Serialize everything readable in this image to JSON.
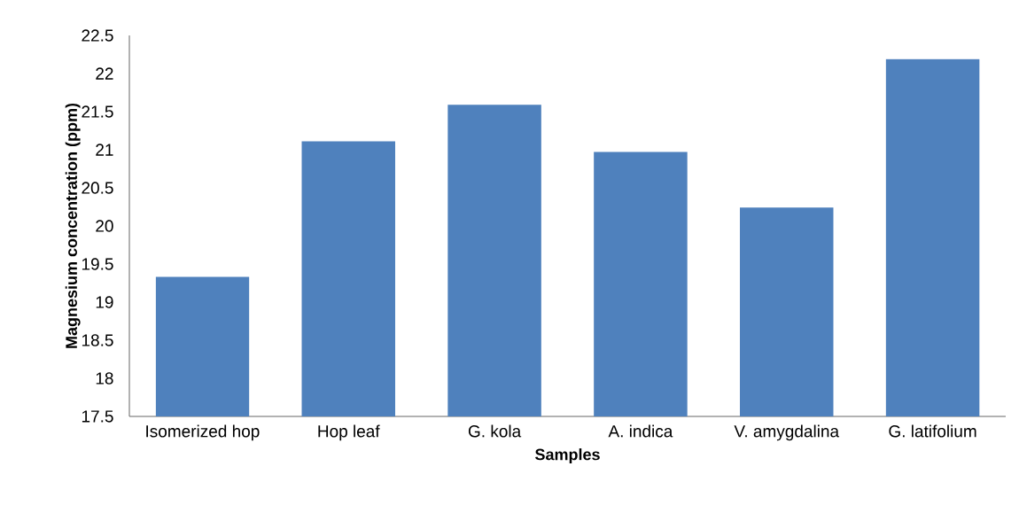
{
  "chart_data": {
    "type": "bar",
    "xlabel": "Samples",
    "ylabel": "Magnesium concentration (ppm)",
    "categories": [
      "Isomerized hop",
      "Hop leaf",
      "G. kola",
      "A. indica",
      "V. amygdalina",
      "G. latifolium"
    ],
    "values": [
      19.33,
      21.11,
      21.59,
      20.97,
      20.24,
      22.19
    ],
    "color": "#4f81bd",
    "ylim": [
      17.5,
      22.5
    ],
    "yticks": [
      17.5,
      18,
      18.5,
      19,
      19.5,
      20,
      20.5,
      21,
      21.5,
      22,
      22.5
    ],
    "grid": false
  }
}
